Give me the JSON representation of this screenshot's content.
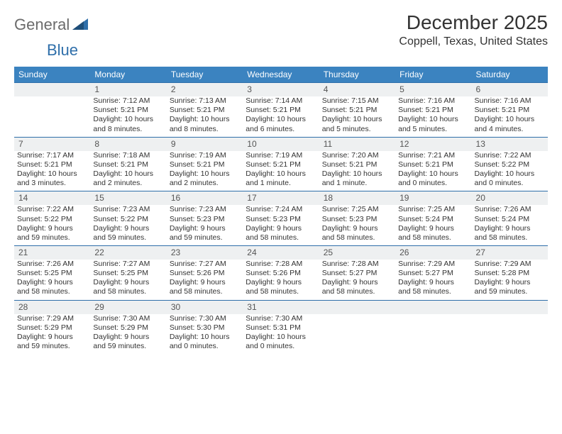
{
  "brand": {
    "part1": "General",
    "part2": "Blue"
  },
  "title": "December 2025",
  "subtitle": "Coppell, Texas, United States",
  "colors": {
    "header_bg": "#3b83c0",
    "rule": "#2f6faa",
    "daynum_bg": "#eef0f1",
    "text": "#333333",
    "logo_gray": "#6b6b6b"
  },
  "day_headers": [
    "Sunday",
    "Monday",
    "Tuesday",
    "Wednesday",
    "Thursday",
    "Friday",
    "Saturday"
  ],
  "weeks": [
    [
      {
        "n": "",
        "sunrise": "",
        "sunset": "",
        "dl1": "",
        "dl2": ""
      },
      {
        "n": "1",
        "sunrise": "Sunrise: 7:12 AM",
        "sunset": "Sunset: 5:21 PM",
        "dl1": "Daylight: 10 hours",
        "dl2": "and 8 minutes."
      },
      {
        "n": "2",
        "sunrise": "Sunrise: 7:13 AM",
        "sunset": "Sunset: 5:21 PM",
        "dl1": "Daylight: 10 hours",
        "dl2": "and 8 minutes."
      },
      {
        "n": "3",
        "sunrise": "Sunrise: 7:14 AM",
        "sunset": "Sunset: 5:21 PM",
        "dl1": "Daylight: 10 hours",
        "dl2": "and 6 minutes."
      },
      {
        "n": "4",
        "sunrise": "Sunrise: 7:15 AM",
        "sunset": "Sunset: 5:21 PM",
        "dl1": "Daylight: 10 hours",
        "dl2": "and 5 minutes."
      },
      {
        "n": "5",
        "sunrise": "Sunrise: 7:16 AM",
        "sunset": "Sunset: 5:21 PM",
        "dl1": "Daylight: 10 hours",
        "dl2": "and 5 minutes."
      },
      {
        "n": "6",
        "sunrise": "Sunrise: 7:16 AM",
        "sunset": "Sunset: 5:21 PM",
        "dl1": "Daylight: 10 hours",
        "dl2": "and 4 minutes."
      }
    ],
    [
      {
        "n": "7",
        "sunrise": "Sunrise: 7:17 AM",
        "sunset": "Sunset: 5:21 PM",
        "dl1": "Daylight: 10 hours",
        "dl2": "and 3 minutes."
      },
      {
        "n": "8",
        "sunrise": "Sunrise: 7:18 AM",
        "sunset": "Sunset: 5:21 PM",
        "dl1": "Daylight: 10 hours",
        "dl2": "and 2 minutes."
      },
      {
        "n": "9",
        "sunrise": "Sunrise: 7:19 AM",
        "sunset": "Sunset: 5:21 PM",
        "dl1": "Daylight: 10 hours",
        "dl2": "and 2 minutes."
      },
      {
        "n": "10",
        "sunrise": "Sunrise: 7:19 AM",
        "sunset": "Sunset: 5:21 PM",
        "dl1": "Daylight: 10 hours",
        "dl2": "and 1 minute."
      },
      {
        "n": "11",
        "sunrise": "Sunrise: 7:20 AM",
        "sunset": "Sunset: 5:21 PM",
        "dl1": "Daylight: 10 hours",
        "dl2": "and 1 minute."
      },
      {
        "n": "12",
        "sunrise": "Sunrise: 7:21 AM",
        "sunset": "Sunset: 5:21 PM",
        "dl1": "Daylight: 10 hours",
        "dl2": "and 0 minutes."
      },
      {
        "n": "13",
        "sunrise": "Sunrise: 7:22 AM",
        "sunset": "Sunset: 5:22 PM",
        "dl1": "Daylight: 10 hours",
        "dl2": "and 0 minutes."
      }
    ],
    [
      {
        "n": "14",
        "sunrise": "Sunrise: 7:22 AM",
        "sunset": "Sunset: 5:22 PM",
        "dl1": "Daylight: 9 hours",
        "dl2": "and 59 minutes."
      },
      {
        "n": "15",
        "sunrise": "Sunrise: 7:23 AM",
        "sunset": "Sunset: 5:22 PM",
        "dl1": "Daylight: 9 hours",
        "dl2": "and 59 minutes."
      },
      {
        "n": "16",
        "sunrise": "Sunrise: 7:23 AM",
        "sunset": "Sunset: 5:23 PM",
        "dl1": "Daylight: 9 hours",
        "dl2": "and 59 minutes."
      },
      {
        "n": "17",
        "sunrise": "Sunrise: 7:24 AM",
        "sunset": "Sunset: 5:23 PM",
        "dl1": "Daylight: 9 hours",
        "dl2": "and 58 minutes."
      },
      {
        "n": "18",
        "sunrise": "Sunrise: 7:25 AM",
        "sunset": "Sunset: 5:23 PM",
        "dl1": "Daylight: 9 hours",
        "dl2": "and 58 minutes."
      },
      {
        "n": "19",
        "sunrise": "Sunrise: 7:25 AM",
        "sunset": "Sunset: 5:24 PM",
        "dl1": "Daylight: 9 hours",
        "dl2": "and 58 minutes."
      },
      {
        "n": "20",
        "sunrise": "Sunrise: 7:26 AM",
        "sunset": "Sunset: 5:24 PM",
        "dl1": "Daylight: 9 hours",
        "dl2": "and 58 minutes."
      }
    ],
    [
      {
        "n": "21",
        "sunrise": "Sunrise: 7:26 AM",
        "sunset": "Sunset: 5:25 PM",
        "dl1": "Daylight: 9 hours",
        "dl2": "and 58 minutes."
      },
      {
        "n": "22",
        "sunrise": "Sunrise: 7:27 AM",
        "sunset": "Sunset: 5:25 PM",
        "dl1": "Daylight: 9 hours",
        "dl2": "and 58 minutes."
      },
      {
        "n": "23",
        "sunrise": "Sunrise: 7:27 AM",
        "sunset": "Sunset: 5:26 PM",
        "dl1": "Daylight: 9 hours",
        "dl2": "and 58 minutes."
      },
      {
        "n": "24",
        "sunrise": "Sunrise: 7:28 AM",
        "sunset": "Sunset: 5:26 PM",
        "dl1": "Daylight: 9 hours",
        "dl2": "and 58 minutes."
      },
      {
        "n": "25",
        "sunrise": "Sunrise: 7:28 AM",
        "sunset": "Sunset: 5:27 PM",
        "dl1": "Daylight: 9 hours",
        "dl2": "and 58 minutes."
      },
      {
        "n": "26",
        "sunrise": "Sunrise: 7:29 AM",
        "sunset": "Sunset: 5:27 PM",
        "dl1": "Daylight: 9 hours",
        "dl2": "and 58 minutes."
      },
      {
        "n": "27",
        "sunrise": "Sunrise: 7:29 AM",
        "sunset": "Sunset: 5:28 PM",
        "dl1": "Daylight: 9 hours",
        "dl2": "and 59 minutes."
      }
    ],
    [
      {
        "n": "28",
        "sunrise": "Sunrise: 7:29 AM",
        "sunset": "Sunset: 5:29 PM",
        "dl1": "Daylight: 9 hours",
        "dl2": "and 59 minutes."
      },
      {
        "n": "29",
        "sunrise": "Sunrise: 7:30 AM",
        "sunset": "Sunset: 5:29 PM",
        "dl1": "Daylight: 9 hours",
        "dl2": "and 59 minutes."
      },
      {
        "n": "30",
        "sunrise": "Sunrise: 7:30 AM",
        "sunset": "Sunset: 5:30 PM",
        "dl1": "Daylight: 10 hours",
        "dl2": "and 0 minutes."
      },
      {
        "n": "31",
        "sunrise": "Sunrise: 7:30 AM",
        "sunset": "Sunset: 5:31 PM",
        "dl1": "Daylight: 10 hours",
        "dl2": "and 0 minutes."
      },
      {
        "n": "",
        "sunrise": "",
        "sunset": "",
        "dl1": "",
        "dl2": ""
      },
      {
        "n": "",
        "sunrise": "",
        "sunset": "",
        "dl1": "",
        "dl2": ""
      },
      {
        "n": "",
        "sunrise": "",
        "sunset": "",
        "dl1": "",
        "dl2": ""
      }
    ]
  ]
}
